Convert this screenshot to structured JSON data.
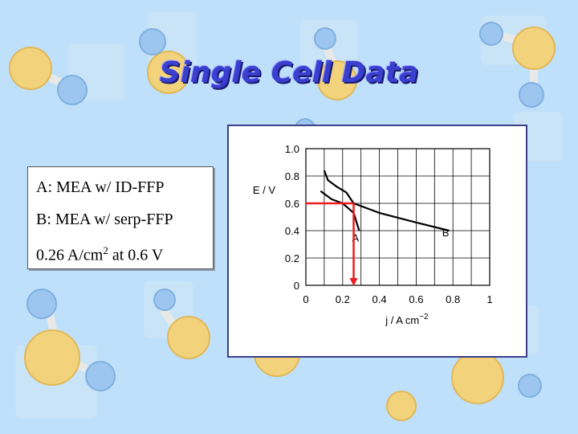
{
  "slide": {
    "title": "Single Cell Data",
    "background_color": "#bfe0fb"
  },
  "legend": {
    "line_a": "A: MEA w/ ID-FFP",
    "line_b": "B: MEA w/ serp-FFP",
    "line_c_value": "0.26 A/cm",
    "line_c_sup": "2",
    "line_c_rest": " at 0.6 V"
  },
  "chart_data": {
    "type": "line",
    "title": "",
    "xlabel": "j / A cm",
    "xlabel_sup": "−2",
    "ylabel": "E / V",
    "xlim": [
      0,
      1
    ],
    "ylim": [
      0,
      1
    ],
    "x_ticks": [
      "0",
      "0.2",
      "0.4",
      "0.6",
      "0.8",
      "1"
    ],
    "y_ticks": [
      "0",
      "0.2",
      "0.4",
      "0.6",
      "0.8",
      "1.0"
    ],
    "grid": true,
    "series": [
      {
        "name": "A",
        "color": "#000000",
        "label_at": [
          0.27,
          0.32
        ],
        "x": [
          0.08,
          0.14,
          0.2,
          0.26,
          0.29
        ],
        "y": [
          0.69,
          0.63,
          0.6,
          0.53,
          0.4
        ]
      },
      {
        "name": "B",
        "color": "#000000",
        "label_at": [
          0.76,
          0.36
        ],
        "x": [
          0.1,
          0.12,
          0.17,
          0.22,
          0.26,
          0.4,
          0.6,
          0.78
        ],
        "y": [
          0.84,
          0.77,
          0.72,
          0.68,
          0.6,
          0.53,
          0.46,
          0.4
        ]
      }
    ],
    "annotations": [
      {
        "type": "operating-point",
        "x": 0.26,
        "y": 0.6,
        "color": "#ee1c1c",
        "arrow_down": true
      }
    ]
  }
}
